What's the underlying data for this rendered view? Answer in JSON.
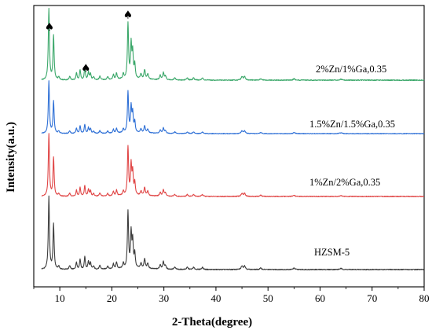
{
  "chart_data": {
    "type": "line",
    "title": "",
    "xlabel": "2-Theta(degree)",
    "ylabel": "Intensity(a.u.)",
    "xlim": [
      5,
      80
    ],
    "xticks": [
      10,
      20,
      30,
      40,
      50,
      60,
      70,
      80
    ],
    "yticks_shown": false,
    "grid": false,
    "legend": "none",
    "annotation_glyph": "♠",
    "annotations": [
      {
        "x": 8.0,
        "label": "♠"
      },
      {
        "x": 15.0,
        "label": "♠"
      },
      {
        "x": 23.1,
        "label": "♠"
      }
    ],
    "peaks": [
      {
        "x": 7.9,
        "h": 1.0,
        "w": 0.13
      },
      {
        "x": 8.8,
        "h": 0.62,
        "w": 0.13
      },
      {
        "x": 9.8,
        "h": 0.04,
        "w": 0.15
      },
      {
        "x": 11.9,
        "h": 0.05,
        "w": 0.15
      },
      {
        "x": 13.2,
        "h": 0.1,
        "w": 0.13
      },
      {
        "x": 13.9,
        "h": 0.14,
        "w": 0.13
      },
      {
        "x": 14.8,
        "h": 0.17,
        "w": 0.13
      },
      {
        "x": 15.5,
        "h": 0.11,
        "w": 0.13
      },
      {
        "x": 15.9,
        "h": 0.09,
        "w": 0.13
      },
      {
        "x": 16.5,
        "h": 0.04,
        "w": 0.15
      },
      {
        "x": 17.7,
        "h": 0.05,
        "w": 0.15
      },
      {
        "x": 19.2,
        "h": 0.04,
        "w": 0.15
      },
      {
        "x": 20.3,
        "h": 0.07,
        "w": 0.13
      },
      {
        "x": 20.9,
        "h": 0.09,
        "w": 0.13
      },
      {
        "x": 22.2,
        "h": 0.07,
        "w": 0.13
      },
      {
        "x": 23.1,
        "h": 0.78,
        "w": 0.13
      },
      {
        "x": 23.7,
        "h": 0.48,
        "w": 0.13
      },
      {
        "x": 24.0,
        "h": 0.36,
        "w": 0.13
      },
      {
        "x": 24.4,
        "h": 0.2,
        "w": 0.13
      },
      {
        "x": 25.6,
        "h": 0.07,
        "w": 0.15
      },
      {
        "x": 26.3,
        "h": 0.13,
        "w": 0.15
      },
      {
        "x": 26.9,
        "h": 0.07,
        "w": 0.15
      },
      {
        "x": 29.3,
        "h": 0.06,
        "w": 0.15
      },
      {
        "x": 29.9,
        "h": 0.1,
        "w": 0.15
      },
      {
        "x": 30.3,
        "h": 0.05,
        "w": 0.15
      },
      {
        "x": 32.1,
        "h": 0.03,
        "w": 0.18
      },
      {
        "x": 34.5,
        "h": 0.03,
        "w": 0.18
      },
      {
        "x": 35.7,
        "h": 0.03,
        "w": 0.18
      },
      {
        "x": 37.4,
        "h": 0.03,
        "w": 0.18
      },
      {
        "x": 45.0,
        "h": 0.05,
        "w": 0.18
      },
      {
        "x": 45.5,
        "h": 0.05,
        "w": 0.18
      },
      {
        "x": 48.6,
        "h": 0.02,
        "w": 0.2
      },
      {
        "x": 55.0,
        "h": 0.02,
        "w": 0.2
      },
      {
        "x": 64.0,
        "h": 0.015,
        "w": 0.25
      }
    ],
    "series": [
      {
        "name": "HZSM-5",
        "color": "#3c3c3c",
        "scale": 1.0
      },
      {
        "name": "1%Zn/2%Ga,0.35",
        "color": "#e04545",
        "scale": 0.86
      },
      {
        "name": "1.5%Zn/1.5%Ga,0.35",
        "color": "#2d6fd6",
        "scale": 0.72
      },
      {
        "name": "2%Zn/1%Ga,0.35",
        "color": "#3aa769",
        "scale": 0.98
      }
    ]
  }
}
